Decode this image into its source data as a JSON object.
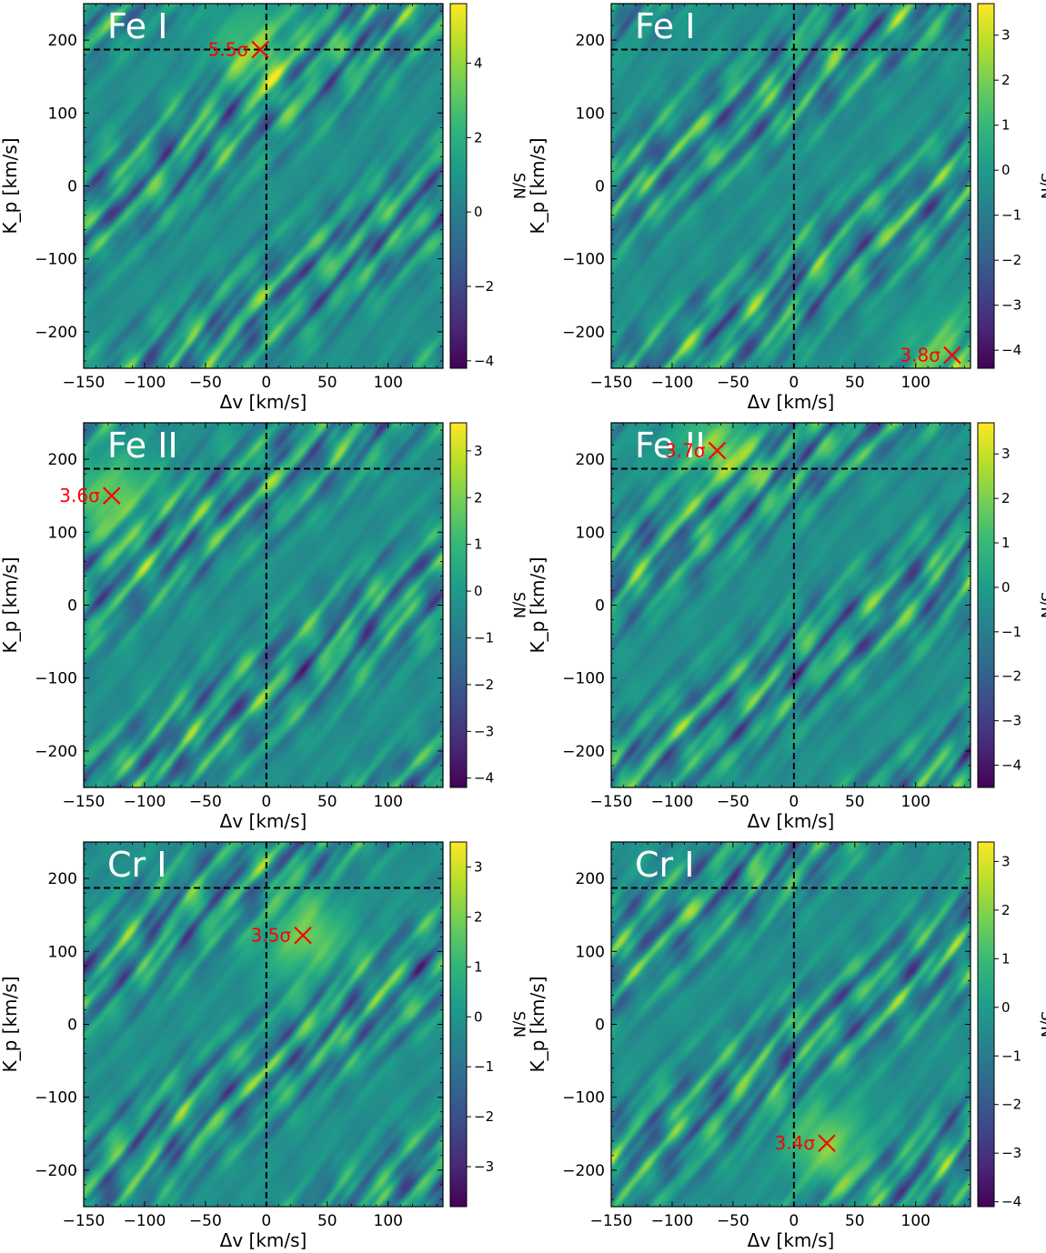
{
  "figure": {
    "colormap": "viridis",
    "colormap_stops": [
      "#440154",
      "#482878",
      "#3e4989",
      "#31688e",
      "#26828e",
      "#1f9e89",
      "#35b779",
      "#6ece58",
      "#b5de2b",
      "#fde725"
    ],
    "marker_color": "#ff0000",
    "guide_line_color": "#000000",
    "label_text_color": "#ffffff"
  },
  "chart_data": [
    {
      "type": "heatmap",
      "panel_label": "Fe I",
      "xlabel": "Δv [km/s]",
      "ylabel": "K_p [km/s]",
      "colorbar_label": "S/N",
      "xlim": [
        -150,
        145
      ],
      "ylim": [
        -250,
        250
      ],
      "x_ticks": [
        -150,
        -100,
        -50,
        0,
        50,
        100
      ],
      "y_ticks": [
        -200,
        -100,
        0,
        100,
        200
      ],
      "zlim": [
        -4.2,
        5.6
      ],
      "colorbar_ticks": [
        -4,
        -2,
        0,
        2,
        4
      ],
      "guide_lines": {
        "dv": 0,
        "kp": 187
      },
      "peak": {
        "dv": -5,
        "kp": 187,
        "label": "5.5σ"
      }
    },
    {
      "type": "heatmap",
      "panel_label": "Fe I",
      "xlabel": "Δv [km/s]",
      "ylabel": "K_p [km/s]",
      "colorbar_label": "S/N",
      "xlim": [
        -150,
        145
      ],
      "ylim": [
        -250,
        250
      ],
      "x_ticks": [
        -150,
        -100,
        -50,
        0,
        50,
        100
      ],
      "y_ticks": [
        -200,
        -100,
        0,
        100,
        200
      ],
      "zlim": [
        -4.4,
        3.7
      ],
      "colorbar_ticks": [
        -4,
        -3,
        -2,
        -1,
        0,
        1,
        2,
        3
      ],
      "guide_lines": {
        "dv": 0,
        "kp": 187
      },
      "peak": {
        "dv": 130,
        "kp": -232,
        "label": "3.8σ"
      }
    },
    {
      "type": "heatmap",
      "panel_label": "Fe II",
      "xlabel": "Δv [km/s]",
      "ylabel": "K_p [km/s]",
      "colorbar_label": "S/N",
      "xlim": [
        -150,
        145
      ],
      "ylim": [
        -250,
        250
      ],
      "x_ticks": [
        -150,
        -100,
        -50,
        0,
        50,
        100
      ],
      "y_ticks": [
        -200,
        -100,
        0,
        100,
        200
      ],
      "zlim": [
        -4.2,
        3.6
      ],
      "colorbar_ticks": [
        -4,
        -3,
        -2,
        -1,
        0,
        1,
        2,
        3
      ],
      "guide_lines": {
        "dv": 0,
        "kp": 187
      },
      "peak": {
        "dv": -127,
        "kp": 150,
        "label": "3.6σ"
      }
    },
    {
      "type": "heatmap",
      "panel_label": "Fe II",
      "xlabel": "Δv [km/s]",
      "ylabel": "K_p [km/s]",
      "colorbar_label": "S/N",
      "xlim": [
        -150,
        145
      ],
      "ylim": [
        -250,
        250
      ],
      "x_ticks": [
        -150,
        -100,
        -50,
        0,
        50,
        100
      ],
      "y_ticks": [
        -200,
        -100,
        0,
        100,
        200
      ],
      "zlim": [
        -4.5,
        3.7
      ],
      "colorbar_ticks": [
        -4,
        -3,
        -2,
        -1,
        0,
        1,
        2,
        3
      ],
      "guide_lines": {
        "dv": 0,
        "kp": 187
      },
      "peak": {
        "dv": -63,
        "kp": 212,
        "label": "3.7σ"
      }
    },
    {
      "type": "heatmap",
      "panel_label": "Cr I",
      "xlabel": "Δv [km/s]",
      "ylabel": "K_p [km/s]",
      "colorbar_label": "S/N",
      "xlim": [
        -150,
        145
      ],
      "ylim": [
        -250,
        250
      ],
      "x_ticks": [
        -150,
        -100,
        -50,
        0,
        50,
        100
      ],
      "y_ticks": [
        -200,
        -100,
        0,
        100,
        200
      ],
      "zlim": [
        -3.8,
        3.5
      ],
      "colorbar_ticks": [
        -3,
        -2,
        -1,
        0,
        1,
        2,
        3
      ],
      "guide_lines": {
        "dv": 0,
        "kp": 187
      },
      "peak": {
        "dv": 30,
        "kp": 122,
        "label": "3.5σ"
      }
    },
    {
      "type": "heatmap",
      "panel_label": "Cr I",
      "xlabel": "Δv [km/s]",
      "ylabel": "K_p [km/s]",
      "colorbar_label": "S/N",
      "xlim": [
        -150,
        145
      ],
      "ylim": [
        -250,
        250
      ],
      "x_ticks": [
        -150,
        -100,
        -50,
        0,
        50,
        100
      ],
      "y_ticks": [
        -200,
        -100,
        0,
        100,
        200
      ],
      "zlim": [
        -4.1,
        3.4
      ],
      "colorbar_ticks": [
        -4,
        -3,
        -2,
        -1,
        0,
        1,
        2,
        3
      ],
      "guide_lines": {
        "dv": 0,
        "kp": 187
      },
      "peak": {
        "dv": 27,
        "kp": -163,
        "label": "3.4σ"
      }
    }
  ]
}
